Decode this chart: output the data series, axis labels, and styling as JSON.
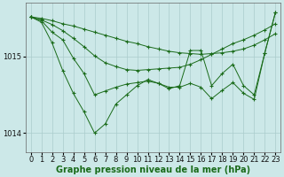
{
  "bg_color": "#cce8e8",
  "grid_color": "#aacccc",
  "line_color": "#1a6b1a",
  "xlabel": "Graphe pression niveau de la mer (hPa)",
  "xlabel_fontsize": 7,
  "tick_fontsize": 6,
  "ylim": [
    1013.75,
    1015.7
  ],
  "yticks": [
    1014,
    1015
  ],
  "xlim": [
    -0.5,
    23.5
  ],
  "xticks": [
    0,
    1,
    2,
    3,
    4,
    5,
    6,
    7,
    8,
    9,
    10,
    11,
    12,
    13,
    14,
    15,
    16,
    17,
    18,
    19,
    20,
    21,
    22,
    23
  ],
  "series": [
    [
      1015.52,
      1015.5,
      1015.47,
      1015.43,
      1015.4,
      1015.36,
      1015.32,
      1015.28,
      1015.24,
      1015.2,
      1015.17,
      1015.13,
      1015.1,
      1015.07,
      1015.05,
      1015.04,
      1015.03,
      1015.04,
      1015.05,
      1015.07,
      1015.1,
      1015.15,
      1015.22,
      1015.3
    ],
    [
      1015.52,
      1015.48,
      1015.42,
      1015.34,
      1015.24,
      1015.13,
      1015.01,
      1014.92,
      1014.87,
      1014.83,
      1014.82,
      1014.83,
      1014.84,
      1014.85,
      1014.86,
      1014.9,
      1014.96,
      1015.03,
      1015.1,
      1015.17,
      1015.22,
      1015.28,
      1015.35,
      1015.43
    ],
    [
      1015.52,
      1015.45,
      1015.18,
      1014.82,
      1014.52,
      1014.28,
      1014.0,
      1014.12,
      1014.38,
      1014.5,
      1014.62,
      1014.7,
      1014.65,
      1014.58,
      1014.62,
      1015.08,
      1015.08,
      1014.62,
      1014.78,
      1014.9,
      1014.62,
      1014.5,
      1015.05,
      1015.58
    ],
    [
      1015.52,
      1015.47,
      1015.32,
      1015.22,
      1014.98,
      1014.78,
      1014.5,
      1014.55,
      1014.6,
      1014.64,
      1014.66,
      1014.68,
      1014.65,
      1014.6,
      1014.6,
      1014.65,
      1014.6,
      1014.45,
      1014.56,
      1014.66,
      1014.52,
      1014.44,
      1015.05,
      1015.58
    ]
  ]
}
